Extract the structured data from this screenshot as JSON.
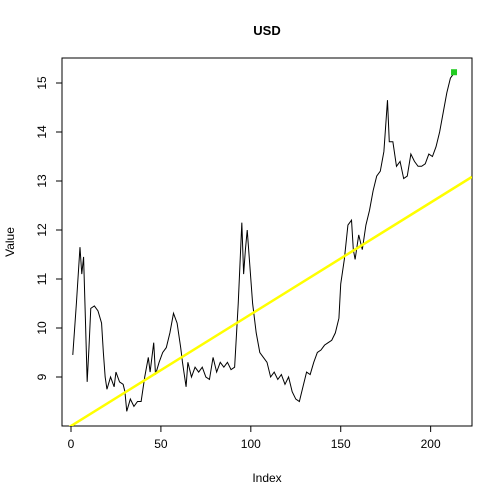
{
  "chart_data": {
    "type": "line",
    "title": "USD",
    "x_label": "Index",
    "y_label": "Value",
    "x": [
      1,
      3,
      5,
      6,
      7,
      8,
      9,
      10,
      11,
      13,
      15,
      17,
      18,
      19,
      20,
      22,
      24,
      25,
      27,
      29,
      30,
      31,
      33,
      35,
      37,
      39,
      41,
      43,
      44,
      46,
      47,
      49,
      51,
      53,
      55,
      57,
      59,
      61,
      62,
      64,
      65,
      67,
      69,
      71,
      73,
      75,
      77,
      79,
      81,
      83,
      85,
      87,
      89,
      91,
      93,
      95,
      96,
      97,
      98,
      99,
      101,
      103,
      105,
      107,
      109,
      111,
      113,
      115,
      117,
      119,
      121,
      123,
      125,
      127,
      129,
      131,
      133,
      135,
      137,
      139,
      141,
      143,
      145,
      147,
      149,
      150,
      152,
      154,
      156,
      157,
      158,
      160,
      162,
      164,
      166,
      168,
      170,
      172,
      174,
      176,
      177,
      179,
      181,
      183,
      185,
      187,
      189,
      191,
      193,
      195,
      197,
      199,
      201,
      203,
      205,
      207,
      209,
      211,
      213
    ],
    "series": [
      {
        "name": "USD",
        "color": "#000000",
        "values": [
          9.45,
          10.5,
          11.65,
          11.1,
          11.45,
          10.2,
          8.9,
          9.6,
          10.4,
          10.45,
          10.35,
          10.1,
          9.5,
          9.0,
          8.75,
          9.0,
          8.8,
          9.1,
          8.9,
          8.85,
          8.7,
          8.3,
          8.55,
          8.4,
          8.5,
          8.5,
          9.0,
          9.4,
          9.1,
          9.7,
          9.05,
          9.3,
          9.5,
          9.6,
          9.9,
          10.3,
          10.1,
          9.6,
          9.3,
          8.8,
          9.3,
          9.0,
          9.2,
          9.1,
          9.2,
          9.0,
          8.95,
          9.4,
          9.1,
          9.3,
          9.2,
          9.3,
          9.15,
          9.2,
          10.5,
          12.15,
          11.1,
          11.6,
          12.0,
          11.5,
          10.5,
          9.9,
          9.5,
          9.4,
          9.3,
          9.0,
          9.1,
          8.95,
          9.05,
          8.85,
          9.0,
          8.7,
          8.55,
          8.5,
          8.8,
          9.1,
          9.05,
          9.3,
          9.5,
          9.55,
          9.65,
          9.7,
          9.75,
          9.9,
          10.2,
          10.9,
          11.4,
          12.1,
          12.2,
          11.6,
          11.4,
          11.9,
          11.6,
          12.1,
          12.4,
          12.8,
          13.1,
          13.2,
          13.6,
          14.65,
          13.8,
          13.8,
          13.3,
          13.4,
          13.05,
          13.1,
          13.55,
          13.4,
          13.3,
          13.3,
          13.35,
          13.55,
          13.5,
          13.7,
          14.0,
          14.4,
          14.8,
          15.1,
          15.2
        ]
      }
    ],
    "trend": {
      "intercept": 8.0,
      "slope": 0.0228,
      "color": "#ffff00"
    },
    "highlight": {
      "x": 213,
      "y": 15.22,
      "color": "#22cc22"
    },
    "xlim": [
      -5,
      223
    ],
    "ylim": [
      8.0,
      15.51
    ],
    "xticks": [
      0,
      50,
      100,
      150,
      200
    ],
    "yticks": [
      9,
      10,
      11,
      12,
      13,
      14,
      15
    ]
  }
}
